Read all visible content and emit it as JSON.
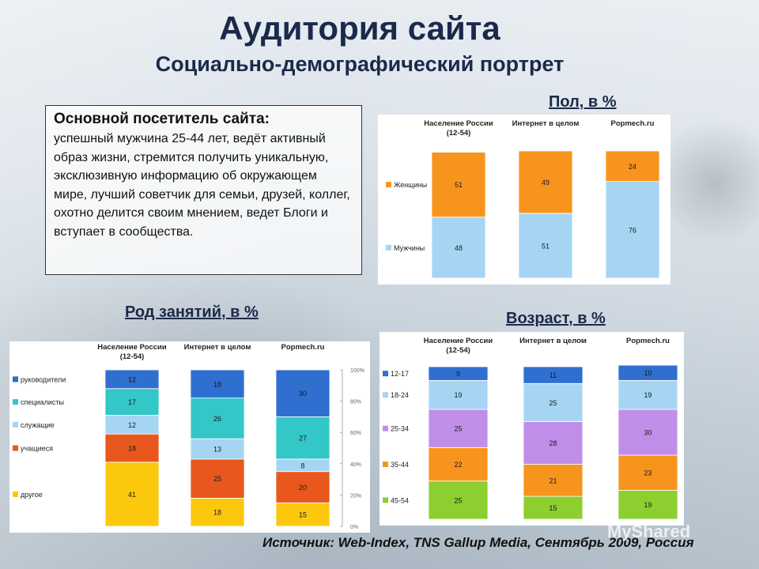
{
  "page": {
    "title": "Аудитория сайта",
    "subtitle": "Социально-демографический портрет",
    "source": "Источник: Web-Index, TNS Gallup Media, Сентябрь 2009, Россия",
    "watermark": "MyShared"
  },
  "info_box": {
    "heading": "Основной посетитель сайта:",
    "text": "успешный мужчина 25-44 лет, ведёт активный образ жизни, стремится получить уникальную, эксклюзивную информацию об окружающем мире, лучший советчик для семьи, друзей, коллег, охотно делится своим мнением, ведет Блоги и вступает в сообщества."
  },
  "sections": {
    "gender_title": "Пол, в %",
    "occupation_title": "Род занятий, в %",
    "age_title": "Возраст, в %"
  },
  "colors": {
    "orange": "#f7941d",
    "lightblue": "#a6d5f4",
    "blue": "#2f6fd0",
    "teal": "#33c7c7",
    "red": "#e8581e",
    "yellow": "#fcc80e",
    "violet": "#c08ee8",
    "green": "#8ccf2e"
  },
  "chart_data": [
    {
      "id": "gender",
      "type": "bar",
      "stacked": true,
      "title": "Пол, в %",
      "categories": [
        "Население России (12-54)",
        "Интернет в целом",
        "Popmech.ru"
      ],
      "category_lines": [
        [
          "Население России",
          "(12-54)"
        ],
        [
          "Интернет в целом"
        ],
        [
          "Popmech.ru"
        ]
      ],
      "series": [
        {
          "name": "Мужчины",
          "color": "#a6d5f4",
          "values": [
            48,
            51,
            76
          ]
        },
        {
          "name": "Женщины",
          "color": "#f7941d",
          "values": [
            51,
            49,
            24
          ]
        }
      ],
      "legend_position": "left",
      "ylim": [
        0,
        100
      ]
    },
    {
      "id": "occupation",
      "type": "bar",
      "stacked": true,
      "title": "Род занятий, в %",
      "categories": [
        "Население России (12-54)",
        "Интернет в целом",
        "Popmech.ru"
      ],
      "category_lines": [
        [
          "Население России",
          "(12-54)"
        ],
        [
          "Интернет в целом"
        ],
        [
          "Popmech.ru"
        ]
      ],
      "series": [
        {
          "name": "другое",
          "color": "#fcc80e",
          "values": [
            41,
            18,
            15
          ]
        },
        {
          "name": "учащиеся",
          "color": "#e8581e",
          "values": [
            18,
            25,
            20
          ]
        },
        {
          "name": "служащие",
          "color": "#a6d5f4",
          "values": [
            12,
            13,
            8
          ]
        },
        {
          "name": "специалисты",
          "color": "#33c7c7",
          "values": [
            17,
            26,
            27
          ]
        },
        {
          "name": "руководители",
          "color": "#2f6fd0",
          "values": [
            12,
            18,
            30
          ]
        }
      ],
      "legend_position": "left",
      "ylim": [
        0,
        100
      ],
      "yticks": [
        "0%",
        "20%",
        "40%",
        "60%",
        "80%",
        "100%"
      ],
      "y_axis_position": "right"
    },
    {
      "id": "age",
      "type": "bar",
      "stacked": true,
      "title": "Возраст, в %",
      "categories": [
        "Население России (12-54)",
        "Интернет в целом",
        "Popmech.ru"
      ],
      "category_lines": [
        [
          "Население России",
          "(12-54)"
        ],
        [
          "Интернет в целом"
        ],
        [
          "Popmech.ru"
        ]
      ],
      "series": [
        {
          "name": "45-54",
          "color": "#8ccf2e",
          "values": [
            25,
            15,
            19
          ]
        },
        {
          "name": "35-44",
          "color": "#f7941d",
          "values": [
            22,
            21,
            23
          ]
        },
        {
          "name": "25-34",
          "color": "#c08ee8",
          "values": [
            25,
            28,
            30
          ]
        },
        {
          "name": "18-24",
          "color": "#a6d5f4",
          "values": [
            19,
            25,
            19
          ]
        },
        {
          "name": "12-17",
          "color": "#2f6fd0",
          "values": [
            9,
            11,
            10
          ]
        }
      ],
      "legend_position": "left",
      "ylim": [
        0,
        100
      ]
    }
  ]
}
